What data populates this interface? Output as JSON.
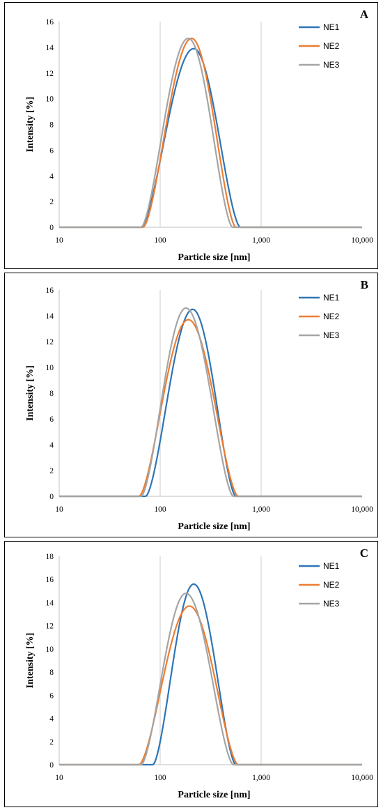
{
  "colors": {
    "NE1": "#2e75b6",
    "NE2": "#ed7d31",
    "NE3": "#a5a5a5",
    "grid": "#d9d9d9",
    "axis": "#bfbfbf"
  },
  "chart_data": [
    {
      "type": "line",
      "panel_letter": "A",
      "xlabel": "Particle size [nm]",
      "ylabel": "Intensity [%]",
      "xscale": "log",
      "xlim": [
        10,
        10000
      ],
      "ylim": [
        0,
        16
      ],
      "yticks": [
        0,
        2,
        4,
        6,
        8,
        10,
        12,
        14,
        16
      ],
      "xticks": [
        10,
        100,
        1000,
        10000
      ],
      "xtick_labels": [
        "10",
        "100",
        "1,000",
        "10,000"
      ],
      "vertical_gridlines": [
        100,
        1000
      ],
      "legend_position": "right",
      "series": [
        {
          "name": "NE1",
          "peak_x": 215,
          "peak_y": 13.9,
          "x_min": 65,
          "x_max": 620
        },
        {
          "name": "NE2",
          "peak_x": 205,
          "peak_y": 14.7,
          "x_min": 68,
          "x_max": 560
        },
        {
          "name": "NE3",
          "peak_x": 190,
          "peak_y": 14.7,
          "x_min": 65,
          "x_max": 520
        }
      ]
    },
    {
      "type": "line",
      "panel_letter": "B",
      "xlabel": "Particle size [nm]",
      "ylabel": "Intensity [%]",
      "xscale": "log",
      "xlim": [
        10,
        10000
      ],
      "ylim": [
        0,
        16
      ],
      "yticks": [
        0,
        2,
        4,
        6,
        8,
        10,
        12,
        14,
        16
      ],
      "xticks": [
        10,
        100,
        1000,
        10000
      ],
      "xtick_labels": [
        "10",
        "100",
        "1,000",
        "10,000"
      ],
      "vertical_gridlines": [
        100,
        1000
      ],
      "legend_position": "right",
      "series": [
        {
          "name": "NE1",
          "peak_x": 210,
          "peak_y": 14.5,
          "x_min": 72,
          "x_max": 560
        },
        {
          "name": "NE2",
          "peak_x": 190,
          "peak_y": 13.7,
          "x_min": 62,
          "x_max": 590
        },
        {
          "name": "NE3",
          "peak_x": 180,
          "peak_y": 14.6,
          "x_min": 65,
          "x_max": 530
        }
      ]
    },
    {
      "type": "line",
      "panel_letter": "C",
      "xlabel": "Particle size [nm]",
      "ylabel": "Intensity [%]",
      "xscale": "log",
      "xlim": [
        10,
        10000
      ],
      "ylim": [
        0,
        18
      ],
      "yticks": [
        0,
        2,
        4,
        6,
        8,
        10,
        12,
        14,
        16,
        18
      ],
      "xticks": [
        10,
        100,
        1000,
        10000
      ],
      "xtick_labels": [
        "10",
        "100",
        "1,000",
        "10,000"
      ],
      "vertical_gridlines": [
        100,
        1000
      ],
      "legend_position": "right",
      "series": [
        {
          "name": "NE1",
          "peak_x": 215,
          "peak_y": 15.6,
          "x_min": 85,
          "x_max": 560
        },
        {
          "name": "NE2",
          "peak_x": 195,
          "peak_y": 13.7,
          "x_min": 62,
          "x_max": 590
        },
        {
          "name": "NE3",
          "peak_x": 180,
          "peak_y": 14.8,
          "x_min": 65,
          "x_max": 530
        }
      ]
    }
  ]
}
